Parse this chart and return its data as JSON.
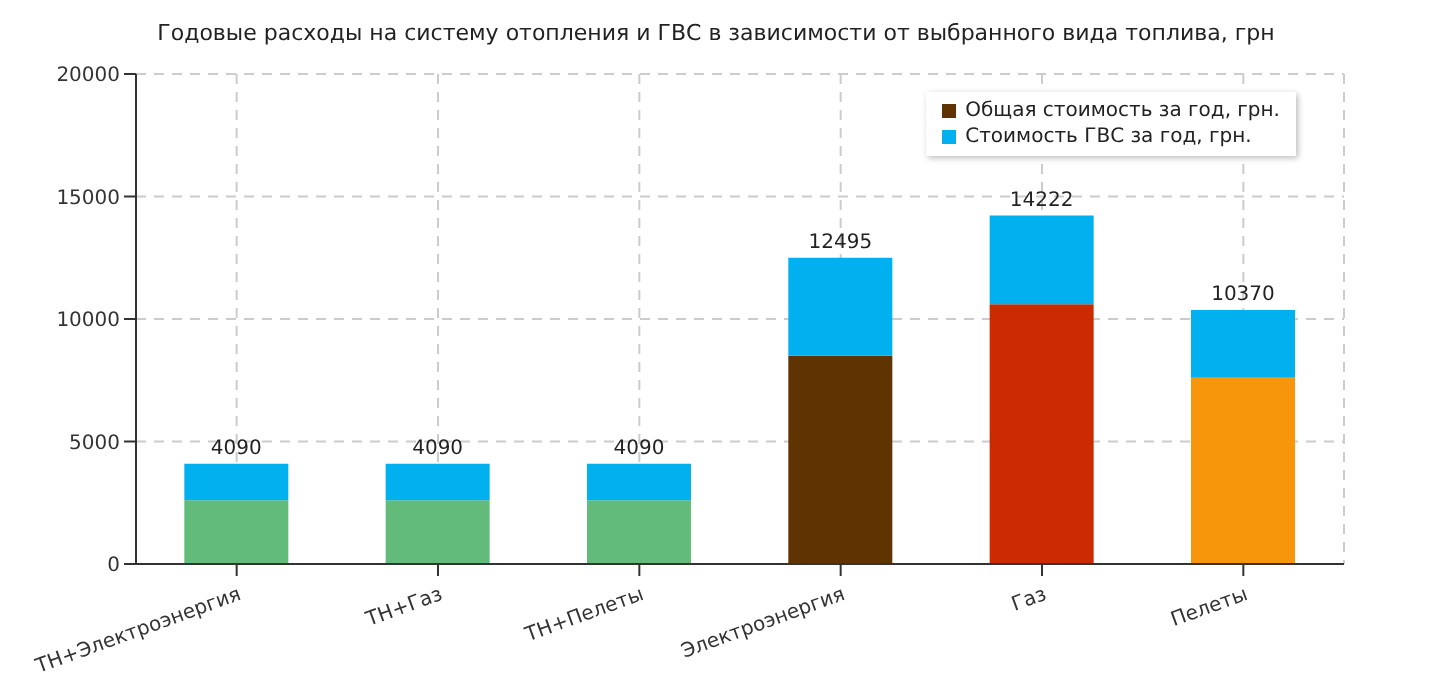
{
  "chart_data": {
    "type": "bar",
    "title": "Годовые расходы на систему отопления и ГВС в зависимости от выбранного вида топлива, грн",
    "categories": [
      "ТН+Электроэнергия",
      "ТН+Газ",
      "ТН+Пелеты",
      "Электроэнергия",
      "Газ",
      "Пелеты"
    ],
    "series": [
      {
        "name": "Общая стоимость за год, грн.",
        "color": "#603400",
        "colors": [
          "#62bb78",
          "#62bb78",
          "#62bb78",
          "#603400",
          "#cc2a00",
          "#f7960a"
        ],
        "values": [
          2600,
          2600,
          2600,
          8500,
          10600,
          7600
        ]
      },
      {
        "name": "Стоимость ГВС за год, грн.",
        "color": "#00b0ef",
        "values": [
          1490,
          1490,
          1490,
          3995,
          3622,
          2770
        ]
      }
    ],
    "stacked": true,
    "totals": [
      "4090",
      "4090",
      "4090",
      "12495",
      "14222",
      "10370"
    ],
    "ylim": [
      0,
      20000
    ],
    "yticks": [
      0,
      5000,
      10000,
      15000,
      20000
    ],
    "grid": true,
    "legend": "top right"
  }
}
